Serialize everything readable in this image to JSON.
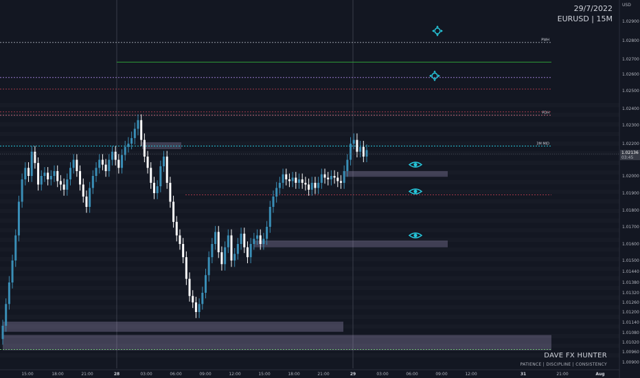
{
  "header": {
    "date": "29/7/2022",
    "symbol": "EURUSD | 15M",
    "currency": "USD"
  },
  "branding": {
    "name": "DAVE FX HUNTER",
    "tagline": "PATIENCE  |  DISCIPLINE  |  CONSISTENCY"
  },
  "colors": {
    "background": "#131722",
    "up": "#3a8fb7",
    "down": "#ffffff",
    "zone": "#b8a9d9",
    "accent": "#26c6da",
    "green_line": "#2e9e3a",
    "red_line": "#a33a4a"
  },
  "chart_data": {
    "type": "candlestick",
    "y_ticks": [
      "1.02900",
      "1.02800",
      "1.02700",
      "1.02600",
      "1.02500",
      "1.02400",
      "1.02300",
      "1.02200",
      "1.02000",
      "1.01900",
      "1.01800",
      "1.01700",
      "1.01600",
      "1.01500",
      "1.01440",
      "1.01380",
      "1.01320",
      "1.01260",
      "1.01200",
      "1.01140",
      "1.01080",
      "1.01020",
      "1.00960",
      "1.00900"
    ],
    "x_ticks": [
      "15:00",
      "18:00",
      "21:00",
      "28",
      "03:00",
      "06:00",
      "09:00",
      "12:00",
      "15:00",
      "18:00",
      "21:00",
      "29",
      "03:00",
      "06:00",
      "09:00",
      "12:00",
      "31",
      "21:00",
      "Aug"
    ],
    "price_label": {
      "price": "1.02136",
      "countdown": "03:45"
    },
    "levels": [
      {
        "label": "PWH",
        "value": 1.0279
      },
      {
        "label": "PDH",
        "value": 1.0236
      },
      {
        "label": "3M MID",
        "value": 1.02185
      },
      {
        "label": "",
        "value": 1.0268
      },
      {
        "label": "",
        "value": 1.0258
      },
      {
        "label": "",
        "value": 1.0251
      },
      {
        "label": "",
        "value": 1.0238
      },
      {
        "label": "",
        "value": 1.0189
      },
      {
        "label": "",
        "value": 1.00975
      }
    ],
    "zones": [
      {
        "from": 1.0203,
        "to": 1.01995
      },
      {
        "from": 1.0162,
        "to": 1.0158
      },
      {
        "from": 1.01144,
        "to": 1.01085
      },
      {
        "from": 1.01065,
        "to": 1.0097
      }
    ],
    "markers": [
      {
        "type": "target-icon",
        "value": 1.0285
      },
      {
        "type": "target-icon",
        "value": 1.0259
      },
      {
        "type": "eye-icon",
        "value": 1.0207
      },
      {
        "type": "eye-icon",
        "value": 1.0191
      },
      {
        "type": "eye-icon",
        "value": 1.0165
      }
    ],
    "closes": [
      1.0112,
      1.0125,
      1.0138,
      1.015,
      1.0165,
      1.0185,
      1.0198,
      1.0205,
      1.02,
      1.0215,
      1.0208,
      1.0195,
      1.02,
      1.0202,
      1.0198,
      1.02,
      1.0203,
      1.0197,
      1.0195,
      1.0192,
      1.0198,
      1.0205,
      1.021,
      1.0203,
      1.0195,
      1.0188,
      1.0182,
      1.0193,
      1.02,
      1.0205,
      1.021,
      1.0207,
      1.0203,
      1.021,
      1.0215,
      1.021,
      1.0205,
      1.0213,
      1.0218,
      1.022,
      1.0223,
      1.0228,
      1.0233,
      1.0222,
      1.0212,
      1.0205,
      1.0196,
      1.019,
      1.0194,
      1.0206,
      1.0212,
      1.0196,
      1.0185,
      1.0173,
      1.0165,
      1.016,
      1.0152,
      1.014,
      1.013,
      1.0126,
      1.012,
      1.0125,
      1.0132,
      1.0142,
      1.0152,
      1.016,
      1.0167,
      1.0155,
      1.0148,
      1.0158,
      1.0165,
      1.015,
      1.0154,
      1.016,
      1.0166,
      1.0158,
      1.0152,
      1.016,
      1.0163,
      1.0165,
      1.016,
      1.0163,
      1.017,
      1.0182,
      1.0188,
      1.0193,
      1.0196,
      1.0201,
      1.0198,
      1.0197,
      1.0199,
      1.0196,
      1.0198,
      1.0196,
      1.0195,
      1.0192,
      1.0196,
      1.0193,
      1.0196,
      1.0201,
      1.0199,
      1.0198,
      1.02,
      1.0199,
      1.0197,
      1.0196,
      1.0203,
      1.021,
      1.022,
      1.0222,
      1.0215,
      1.0218,
      1.0212,
      1.0216
    ]
  }
}
